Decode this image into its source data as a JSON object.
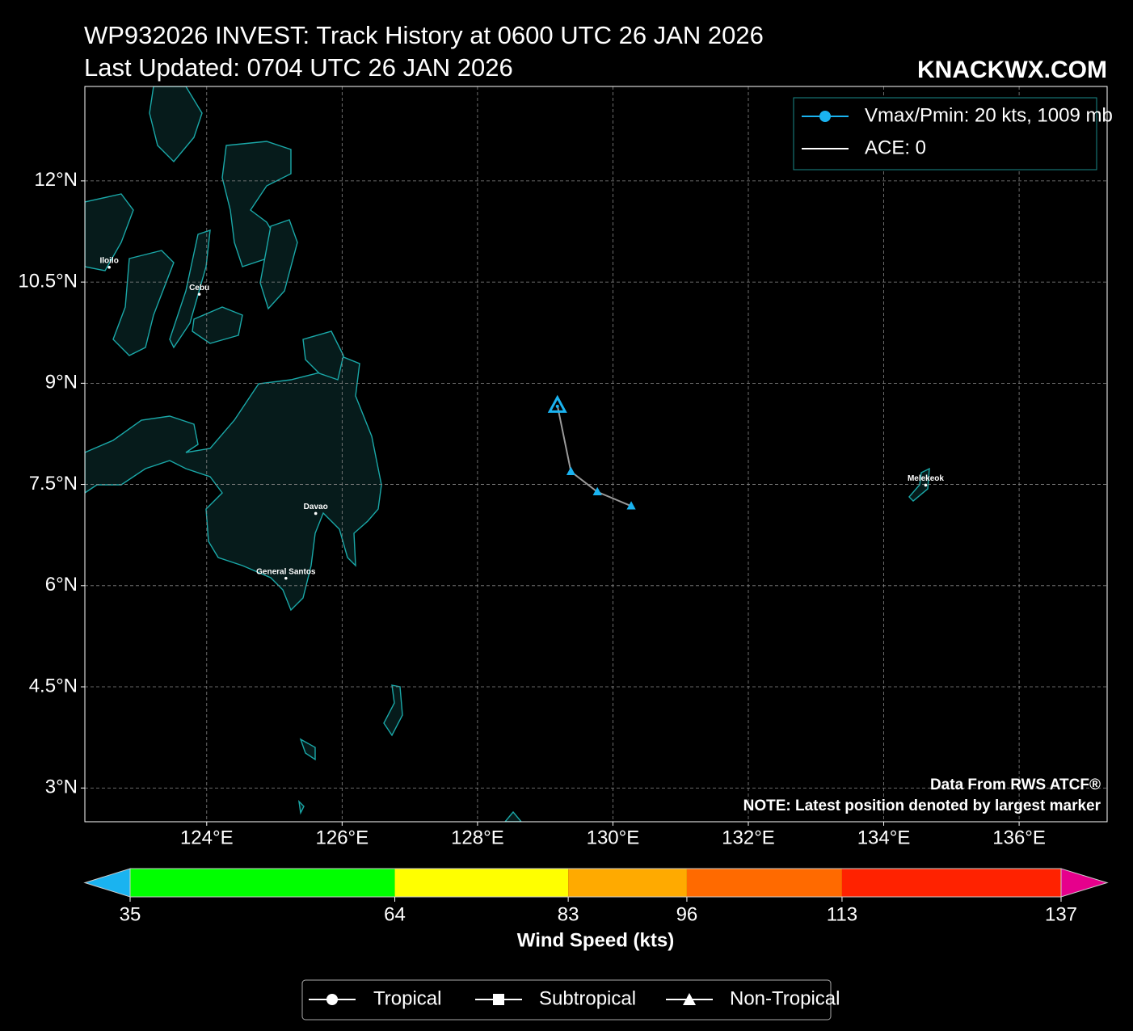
{
  "chart_data": {
    "type": "track",
    "title": "WP932026 INVEST: Track History at 0600 UTC 26 JAN 2026",
    "subtitle": "Last Updated: 0704 UTC 26 JAN 2026",
    "brand": "KNACKWX.COM",
    "xlim": [
      122.2,
      137.3
    ],
    "ylim": [
      2.5,
      13.4
    ],
    "xticks": [
      {
        "value": 124,
        "label": "124°E"
      },
      {
        "value": 126,
        "label": "126°E"
      },
      {
        "value": 128,
        "label": "128°E"
      },
      {
        "value": 130,
        "label": "130°E"
      },
      {
        "value": 132,
        "label": "132°E"
      },
      {
        "value": 134,
        "label": "134°E"
      },
      {
        "value": 136,
        "label": "136°E"
      }
    ],
    "yticks": [
      {
        "value": 3,
        "label": "3°N"
      },
      {
        "value": 4.5,
        "label": "4.5°N"
      },
      {
        "value": 6,
        "label": "6°N"
      },
      {
        "value": 7.5,
        "label": "7.5°N"
      },
      {
        "value": 9,
        "label": "9°N"
      },
      {
        "value": 10.5,
        "label": "10.5°N"
      },
      {
        "value": 12,
        "label": "12°N"
      }
    ],
    "grid": true,
    "track": {
      "x": [
        130.27,
        129.77,
        129.38,
        129.18
      ],
      "y": [
        7.18,
        7.39,
        7.69,
        8.67
      ],
      "color": "#1ab3f0",
      "line_color": "#9a9a9a",
      "marker": "triangle"
    },
    "cities": [
      {
        "name": "Iloilo",
        "lon": 122.56,
        "lat": 10.72
      },
      {
        "name": "Cebu",
        "lon": 123.89,
        "lat": 10.32
      },
      {
        "name": "Davao",
        "lon": 125.61,
        "lat": 7.07
      },
      {
        "name": "General Santos",
        "lon": 125.17,
        "lat": 6.11
      },
      {
        "name": "Melekeok",
        "lon": 134.62,
        "lat": 7.49
      }
    ],
    "legend": [
      "Vmax/Pmin: 20 kts, 1009 mb",
      "ACE: 0"
    ],
    "annotations": [
      "Data From RWS ATCF®",
      "NOTE: Latest position denoted by largest marker"
    ],
    "colorbar": {
      "label": "Wind Speed (kts)",
      "ticks": [
        35,
        64,
        83,
        96,
        113,
        137
      ],
      "colors": [
        "#00ff00",
        "#ffff00",
        "#ffaa00",
        "#ff6a00",
        "#ff2200"
      ],
      "under_color": "#1ab3f0",
      "over_color": "#e6008c"
    },
    "marker_legend": [
      "Tropical",
      "Subtropical",
      "Non-Tropical"
    ]
  }
}
